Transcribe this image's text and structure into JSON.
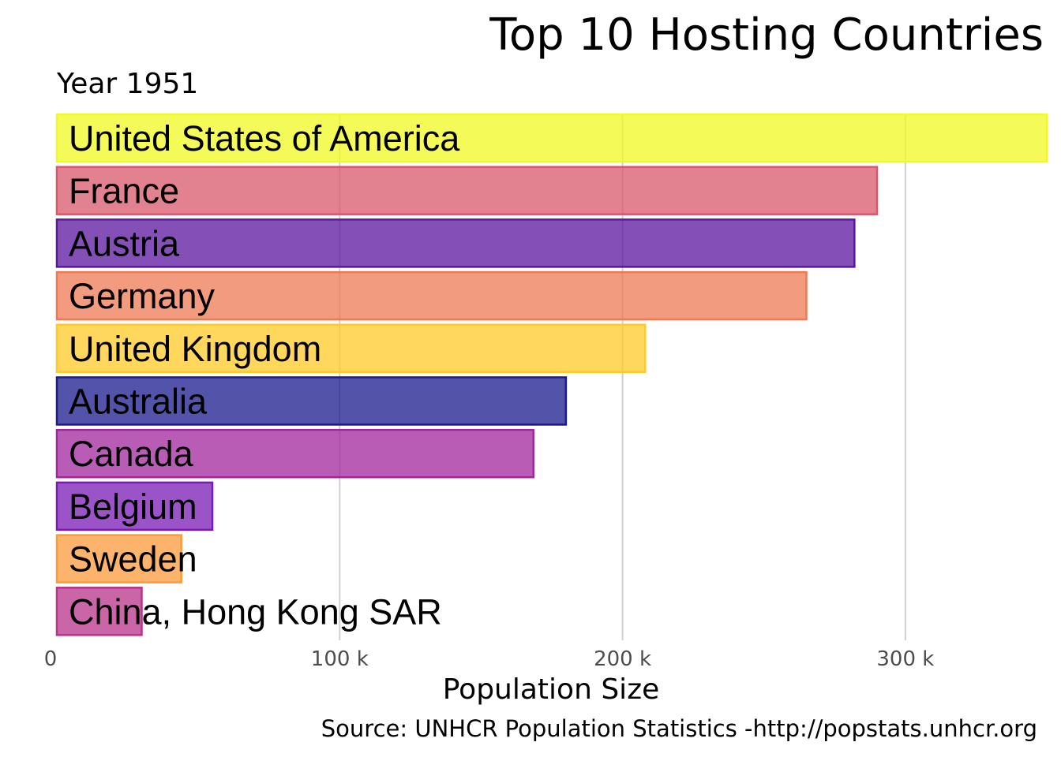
{
  "chart_data": {
    "type": "bar",
    "orientation": "horizontal",
    "title": "Top 10 Hosting Countries",
    "subtitle": "Year 1951",
    "xlabel": "Population Size",
    "ylabel": "",
    "caption": "Source: UNHCR Population Statistics -http://popstats.unhcr.org",
    "xlim": [
      0,
      350000
    ],
    "x_ticks": [
      0,
      100000,
      200000,
      300000
    ],
    "x_tick_labels": [
      "0",
      "100 k",
      "200 k",
      "300 k"
    ],
    "grid": "vertical major lines",
    "legend": "none",
    "categories": [
      "United States of America",
      "France",
      "Austria",
      "Germany",
      "United Kingdom",
      "Australia",
      "Canada",
      "Belgium",
      "Sweden",
      "China, Hong Kong SAR"
    ],
    "values": [
      350000,
      290000,
      282000,
      265000,
      208000,
      180000,
      168500,
      55000,
      44000,
      30000
    ],
    "colors": [
      "#F0F921",
      "#D8576B",
      "#5B16A0",
      "#ED7953",
      "#FDCA26",
      "#1A1A8C",
      "#A2259E",
      "#7A1AB5",
      "#FB9B3B",
      "#B83289"
    ]
  }
}
